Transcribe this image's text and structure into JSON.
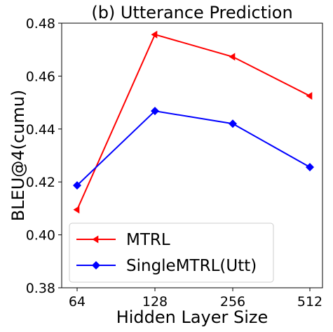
{
  "chart_data": {
    "type": "line",
    "title": "(b) Utterance Prediction",
    "xlabel": "Hidden Layer Size",
    "ylabel": "BLEU@4(cumu)",
    "categories": [
      "64",
      "128",
      "256",
      "512"
    ],
    "ylim": [
      0.38,
      0.48
    ],
    "yticks": [
      "0.38",
      "0.40",
      "0.42",
      "0.44",
      "0.46",
      "0.48"
    ],
    "grid": false,
    "legend_position": "bottom-left",
    "series": [
      {
        "name": "MTRL",
        "color": "#ff0000",
        "marker": "triangle-left",
        "values": [
          0.4095,
          0.4757,
          0.4673,
          0.4525
        ]
      },
      {
        "name": "SingleMTRL(Utt)",
        "color": "#0000ff",
        "marker": "diamond",
        "values": [
          0.4187,
          0.4468,
          0.442,
          0.4256
        ]
      }
    ]
  }
}
